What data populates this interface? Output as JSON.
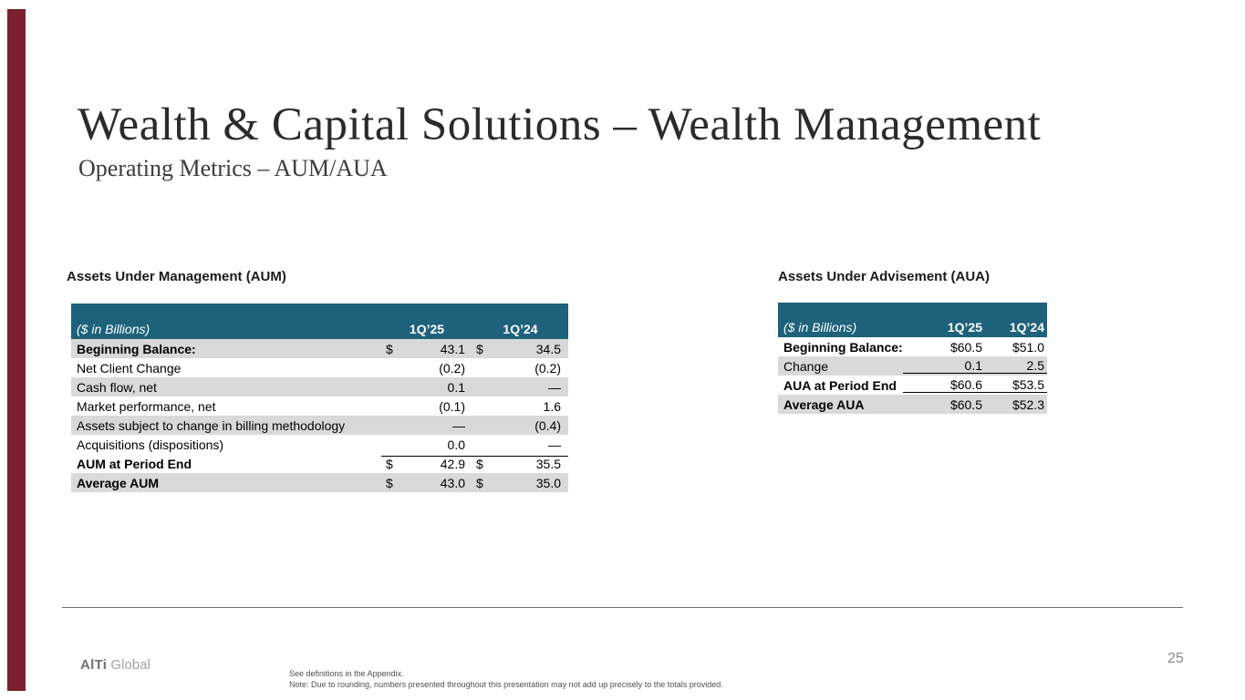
{
  "slide": {
    "title": "Wealth & Capital Solutions – Wealth Management",
    "subtitle": "Operating Metrics – AUM/AUA",
    "page_number": "25",
    "accent_bar_color": "#7B202E",
    "header_bg_color": "#1E617B",
    "stripe_color": "#D9D9D9"
  },
  "aum_table": {
    "section_title": "Assets Under Management (AUM)",
    "header": {
      "label": "($ in Billions)",
      "col1": "1Q’25",
      "col2": "1Q’24"
    },
    "rows": [
      {
        "label": "Beginning Balance:",
        "d1": "$",
        "v1": "43.1",
        "d2": "$",
        "v2": "34.5",
        "bold": true,
        "shaded": true
      },
      {
        "label": "Net Client Change",
        "d1": "",
        "v1": "(0.2)",
        "d2": "",
        "v2": "(0.2)"
      },
      {
        "label": "Cash flow, net",
        "d1": "",
        "v1": "0.1",
        "d2": "",
        "v2": "—",
        "shaded": true
      },
      {
        "label": "Market performance, net",
        "d1": "",
        "v1": "(0.1)",
        "d2": "",
        "v2": "1.6"
      },
      {
        "label": "Assets subject to change in billing methodology",
        "d1": "",
        "v1": "—",
        "d2": "",
        "v2": "(0.4)",
        "shaded": true
      },
      {
        "label": "Acquisitions (dispositions)",
        "d1": "",
        "v1": "0.0",
        "d2": "",
        "v2": "—"
      },
      {
        "label": "AUM at Period End",
        "d1": "$",
        "v1": "42.9",
        "d2": "$",
        "v2": "35.5",
        "bold": true,
        "topline": true
      },
      {
        "label": "Average AUM",
        "d1": "$",
        "v1": "43.0",
        "d2": "$",
        "v2": "35.0",
        "bold": true,
        "shaded": true
      }
    ]
  },
  "aua_table": {
    "section_title": "Assets Under Advisement (AUA)",
    "header": {
      "label": "($ in Billions)",
      "col1": "1Q’25",
      "col2": "1Q’24"
    },
    "rows": [
      {
        "label": "Beginning Balance:",
        "v1": "$60.5",
        "v2": "$51.0",
        "bold": true
      },
      {
        "label": "Change",
        "v1": "0.1",
        "v2": "2.5",
        "shaded": true,
        "underline": true
      },
      {
        "label": "AUA at Period End",
        "v1": "$60.6",
        "v2": "$53.5",
        "bold": true,
        "underline": true
      },
      {
        "label": "Average AUA",
        "v1": "$60.5",
        "v2": "$52.3",
        "bold": true,
        "shaded": true
      }
    ]
  },
  "footer": {
    "logo_primary": "AlTi",
    "logo_secondary": " Global",
    "footnote1": "See definitions in the Appendix.",
    "footnote2": "Note: Due to rounding, numbers presented throughout this presentation may not add up precisely to the totals provided."
  }
}
